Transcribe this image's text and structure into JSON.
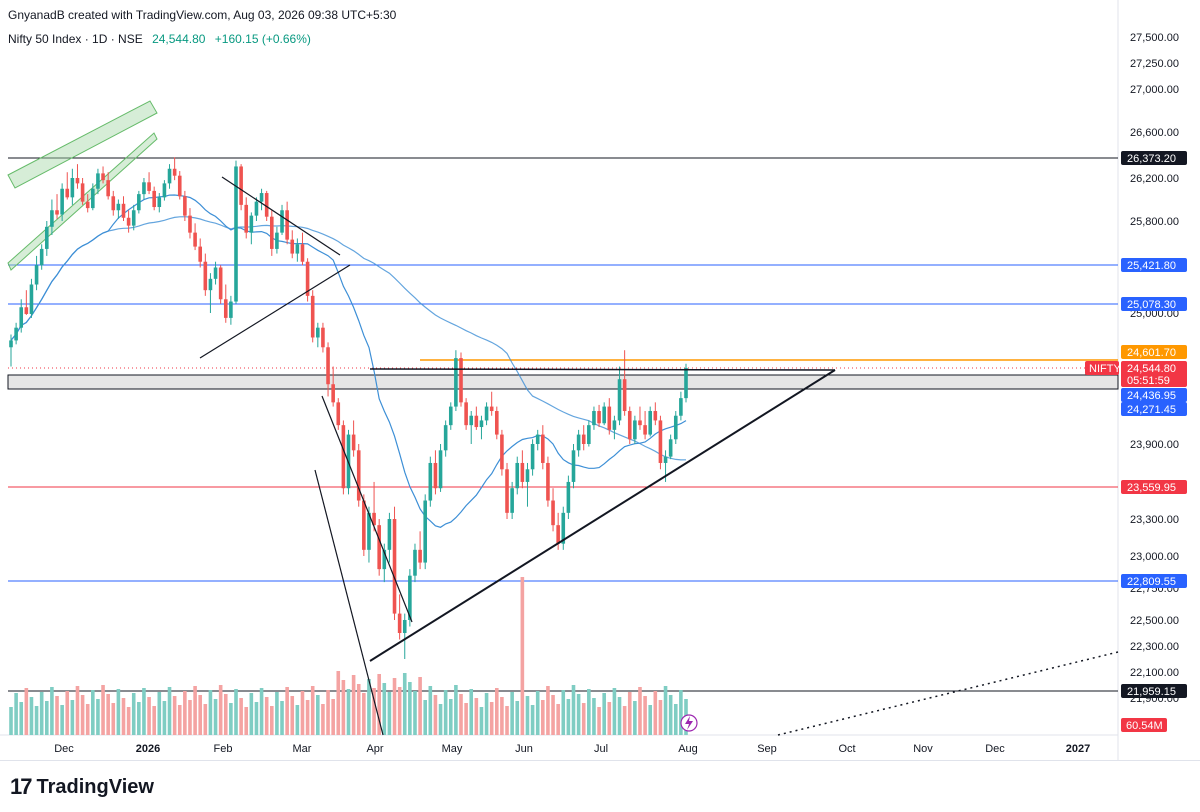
{
  "header": {
    "credit": "GnyanadB created with TradingView.com, Aug 03, 2026 09:38 UTC+5:30",
    "symbol": "Nifty 50 Index · 1D · NSE",
    "last_price": "24,544.80",
    "change": "+160.15 (+0.66%)"
  },
  "footer": {
    "brand": "TradingView"
  },
  "colors": {
    "up": "#26a69a",
    "down": "#ef5350",
    "vol_up": "#7fcdc3",
    "vol_down": "#f4a3a2",
    "ma": "#3d8fd6",
    "hline_blue": "#2962ff",
    "hline_red": "#f23645",
    "hline_black": "#131722",
    "orange": "#ff9800",
    "channel_green": "#66bb6a"
  },
  "chart_data": {
    "type": "candlestick",
    "symbol": "NIFTY",
    "timeframe": "1D",
    "y_axis": {
      "ticks": [
        "27,500.00",
        "27,250.00",
        "27,000.00",
        "26,600.00",
        "26,200.00",
        "25,800.00",
        "25,000.00",
        "23,900.00",
        "23,300.00",
        "23,000.00",
        "22,750.00",
        "22,500.00",
        "22,300.00",
        "22,100.00",
        "21,900.00"
      ]
    },
    "x_axis": {
      "ticks": [
        "Dec",
        "2026",
        "Feb",
        "Mar",
        "Apr",
        "May",
        "Jun",
        "Jul",
        "Aug",
        "Sep",
        "Oct",
        "Nov",
        "Dec",
        "2027"
      ]
    },
    "price_levels": [
      {
        "label": "26,373.20",
        "style": "black"
      },
      {
        "label": "25,421.80",
        "style": "blue"
      },
      {
        "label": "25,078.30",
        "style": "blue"
      },
      {
        "label": "24,601.70",
        "style": "orange"
      },
      {
        "label": "24,436.95",
        "style": "blue-badge"
      },
      {
        "label": "24,271.45",
        "style": "blue-badge"
      },
      {
        "label": "23,559.95",
        "style": "red"
      },
      {
        "label": "22,809.55",
        "style": "blue"
      },
      {
        "label": "21,959.15",
        "style": "black"
      }
    ],
    "last_price_badge": {
      "symbol": "NIFTY",
      "price": "24,544.80",
      "countdown": "05:51:59"
    },
    "volume_badge": "60.54M",
    "candles": [
      [
        24650,
        24780,
        24550,
        24720
      ],
      [
        24720,
        24900,
        24680,
        24850
      ],
      [
        24850,
        25120,
        24800,
        25050
      ],
      [
        25050,
        25200,
        24980,
        24990
      ],
      [
        24990,
        25300,
        24950,
        25250
      ],
      [
        25250,
        25500,
        25200,
        25420
      ],
      [
        25420,
        25600,
        25380,
        25560
      ],
      [
        25560,
        25800,
        25500,
        25750
      ],
      [
        25750,
        26000,
        25680,
        25900
      ],
      [
        25900,
        26050,
        25820,
        25860
      ],
      [
        25860,
        26150,
        25800,
        26100
      ],
      [
        26100,
        26250,
        26000,
        26020
      ],
      [
        26020,
        26280,
        25950,
        26200
      ],
      [
        26200,
        26320,
        26100,
        26150
      ],
      [
        26150,
        26200,
        25950,
        25980
      ],
      [
        25980,
        26050,
        25880,
        25920
      ],
      [
        25920,
        26150,
        25900,
        26100
      ],
      [
        26100,
        26280,
        26050,
        26240
      ],
      [
        26240,
        26300,
        26150,
        26180
      ],
      [
        26180,
        26250,
        26000,
        26030
      ],
      [
        26030,
        26080,
        25850,
        25900
      ],
      [
        25900,
        26000,
        25820,
        25960
      ],
      [
        25960,
        26030,
        25800,
        25830
      ],
      [
        25830,
        25900,
        25700,
        25760
      ],
      [
        25760,
        25950,
        25720,
        25900
      ],
      [
        25900,
        26080,
        25870,
        26050
      ],
      [
        26050,
        26200,
        26000,
        26160
      ],
      [
        26160,
        26250,
        26050,
        26080
      ],
      [
        26080,
        26120,
        25900,
        25930
      ],
      [
        25930,
        26060,
        25880,
        26020
      ],
      [
        26020,
        26180,
        25990,
        26150
      ],
      [
        26150,
        26320,
        26100,
        26280
      ],
      [
        26280,
        26380,
        26180,
        26220
      ],
      [
        26220,
        26260,
        26000,
        26030
      ],
      [
        26030,
        26080,
        25800,
        25850
      ],
      [
        25850,
        25920,
        25650,
        25700
      ],
      [
        25700,
        25780,
        25550,
        25580
      ],
      [
        25580,
        25650,
        25400,
        25450
      ],
      [
        25450,
        25520,
        25150,
        25200
      ],
      [
        25200,
        25350,
        25000,
        25300
      ],
      [
        25300,
        25450,
        25250,
        25400
      ],
      [
        25400,
        25420,
        25080,
        25120
      ],
      [
        25120,
        25250,
        24900,
        24950
      ],
      [
        24950,
        25150,
        24880,
        25100
      ],
      [
        25100,
        26350,
        25080,
        26300
      ],
      [
        26300,
        26320,
        25900,
        25950
      ],
      [
        25950,
        26020,
        25650,
        25700
      ],
      [
        25700,
        25880,
        25600,
        25850
      ],
      [
        25850,
        26020,
        25800,
        25980
      ],
      [
        25980,
        26100,
        25900,
        26060
      ],
      [
        26060,
        26080,
        25800,
        25840
      ],
      [
        25840,
        25900,
        25500,
        25560
      ],
      [
        25560,
        25750,
        25520,
        25700
      ],
      [
        25700,
        25950,
        25680,
        25900
      ],
      [
        25900,
        25980,
        25600,
        25640
      ],
      [
        25640,
        25720,
        25480,
        25520
      ],
      [
        25520,
        25650,
        25450,
        25600
      ],
      [
        25600,
        25700,
        25420,
        25450
      ],
      [
        25450,
        25480,
        25100,
        25150
      ],
      [
        25150,
        25200,
        24700,
        24750
      ],
      [
        24750,
        24900,
        24650,
        24850
      ],
      [
        24850,
        24900,
        24600,
        24650
      ],
      [
        24650,
        24700,
        24420,
        24480
      ],
      [
        24480,
        24550,
        24300,
        24350
      ],
      [
        24350,
        24400,
        24050,
        24100
      ],
      [
        24100,
        24150,
        23500,
        23550
      ],
      [
        23550,
        24050,
        23500,
        24000
      ],
      [
        24000,
        24150,
        23800,
        23850
      ],
      [
        23850,
        23900,
        23400,
        23450
      ],
      [
        23450,
        23500,
        23000,
        23050
      ],
      [
        23050,
        23400,
        22950,
        23350
      ],
      [
        23350,
        23600,
        23200,
        23250
      ],
      [
        23250,
        23300,
        22850,
        22900
      ],
      [
        22900,
        23100,
        22800,
        23050
      ],
      [
        23050,
        23350,
        22950,
        23300
      ],
      [
        23300,
        23400,
        22500,
        22550
      ],
      [
        22550,
        22700,
        22350,
        22400
      ],
      [
        22400,
        22550,
        22200,
        22500
      ],
      [
        22500,
        22900,
        22450,
        22850
      ],
      [
        22850,
        23100,
        22800,
        23050
      ],
      [
        23050,
        23200,
        22900,
        22950
      ],
      [
        22950,
        23500,
        22900,
        23450
      ],
      [
        23450,
        23800,
        23400,
        23750
      ],
      [
        23750,
        23850,
        23500,
        23550
      ],
      [
        23550,
        23900,
        23520,
        23850
      ],
      [
        23850,
        24150,
        23800,
        24100
      ],
      [
        24100,
        24350,
        24050,
        24300
      ],
      [
        24300,
        24620,
        24250,
        24580
      ],
      [
        24580,
        24600,
        24300,
        24350
      ],
      [
        24350,
        24400,
        24050,
        24100
      ],
      [
        24100,
        24250,
        23900,
        24200
      ],
      [
        24200,
        24300,
        24050,
        24080
      ],
      [
        24080,
        24200,
        23950,
        24150
      ],
      [
        24150,
        24350,
        24100,
        24300
      ],
      [
        24300,
        24450,
        24200,
        24250
      ],
      [
        24250,
        24300,
        23950,
        24000
      ],
      [
        24000,
        24050,
        23650,
        23700
      ],
      [
        23700,
        23750,
        23300,
        23350
      ],
      [
        23350,
        23600,
        23300,
        23550
      ],
      [
        23550,
        23800,
        23500,
        23750
      ],
      [
        23750,
        23850,
        23550,
        23600
      ],
      [
        23600,
        23750,
        23400,
        23700
      ],
      [
        23700,
        23950,
        23650,
        23900
      ],
      [
        23900,
        24050,
        23850,
        24000
      ],
      [
        24000,
        24100,
        23700,
        23750
      ],
      [
        23750,
        23800,
        23400,
        23450
      ],
      [
        23450,
        23550,
        23200,
        23250
      ],
      [
        23250,
        23350,
        23050,
        23100
      ],
      [
        23100,
        23400,
        23050,
        23350
      ],
      [
        23350,
        23650,
        23300,
        23600
      ],
      [
        23600,
        23900,
        23550,
        23850
      ],
      [
        23850,
        24050,
        23800,
        24000
      ],
      [
        24000,
        24100,
        23850,
        23900
      ],
      [
        23900,
        24150,
        23880,
        24100
      ],
      [
        24100,
        24300,
        24050,
        24250
      ],
      [
        24250,
        24320,
        24080,
        24120
      ],
      [
        24120,
        24350,
        24100,
        24300
      ],
      [
        24300,
        24400,
        24000,
        24050
      ],
      [
        24050,
        24200,
        23950,
        24150
      ],
      [
        24150,
        24550,
        24100,
        24500
      ],
      [
        24500,
        24620,
        24200,
        24250
      ],
      [
        24250,
        24300,
        23900,
        23950
      ],
      [
        23950,
        24200,
        23900,
        24150
      ],
      [
        24150,
        24300,
        24050,
        24100
      ],
      [
        24100,
        24250,
        23950,
        24000
      ],
      [
        24000,
        24300,
        23980,
        24250
      ],
      [
        24250,
        24350,
        24100,
        24150
      ],
      [
        24150,
        24200,
        23700,
        23750
      ],
      [
        23750,
        23850,
        23600,
        23800
      ],
      [
        23800,
        24000,
        23780,
        23950
      ],
      [
        23950,
        24250,
        23900,
        24200
      ],
      [
        24200,
        24450,
        24150,
        24400
      ],
      [
        24400,
        24560,
        24350,
        24545
      ]
    ]
  }
}
